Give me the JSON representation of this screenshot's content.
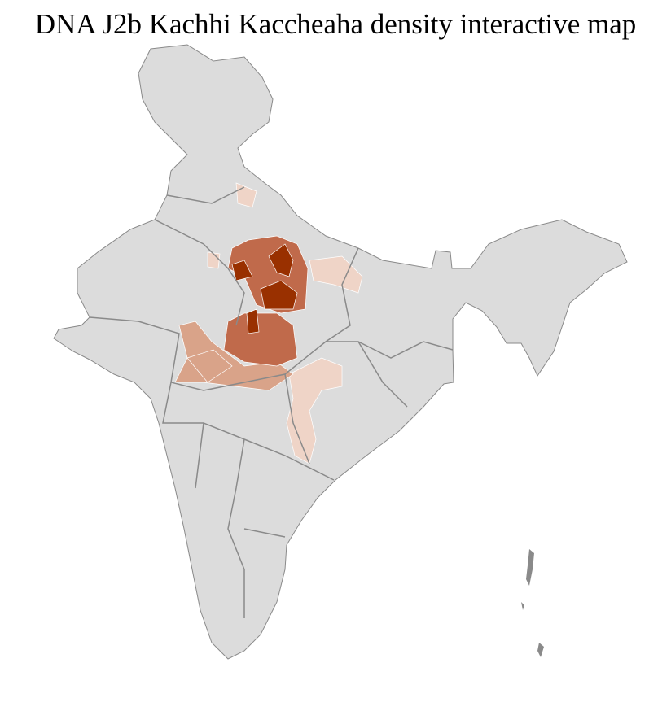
{
  "title": "DNA J2b Kachhi Kaccheaha density interactive map",
  "colors": {
    "land": "#dcdcdc",
    "district_border": "#ffffff",
    "state_border": "#8a8a8a",
    "density_very_low": "#efd4c7",
    "density_low": "#d9a389",
    "density_mid": "#c06a4b",
    "density_high": "#993000"
  }
}
